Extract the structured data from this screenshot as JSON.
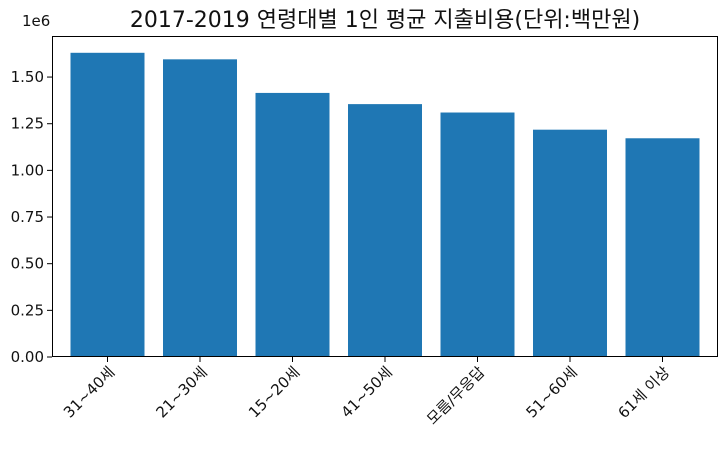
{
  "chart_data": {
    "type": "bar",
    "title": "2017-2019 연령대별 1인 평균 지출비용(단위:백만원)",
    "xlabel": "",
    "ylabel": "",
    "y_offset_label": "1e6",
    "categories": [
      "31~40세",
      "21~30세",
      "15~20세",
      "41~50세",
      "모름/무응답",
      "51~60세",
      "61세 이상"
    ],
    "values": [
      1630000,
      1595000,
      1415000,
      1355000,
      1310000,
      1218000,
      1172000
    ],
    "ylim": [
      0,
      1720000
    ],
    "yticks": [
      0,
      250000,
      500000,
      750000,
      1000000,
      1250000,
      1500000
    ],
    "ytick_labels": [
      "0.00",
      "0.25",
      "0.50",
      "0.75",
      "1.00",
      "1.25",
      "1.50"
    ],
    "bar_color": "#1f77b4",
    "grid": false,
    "legend": "none"
  }
}
